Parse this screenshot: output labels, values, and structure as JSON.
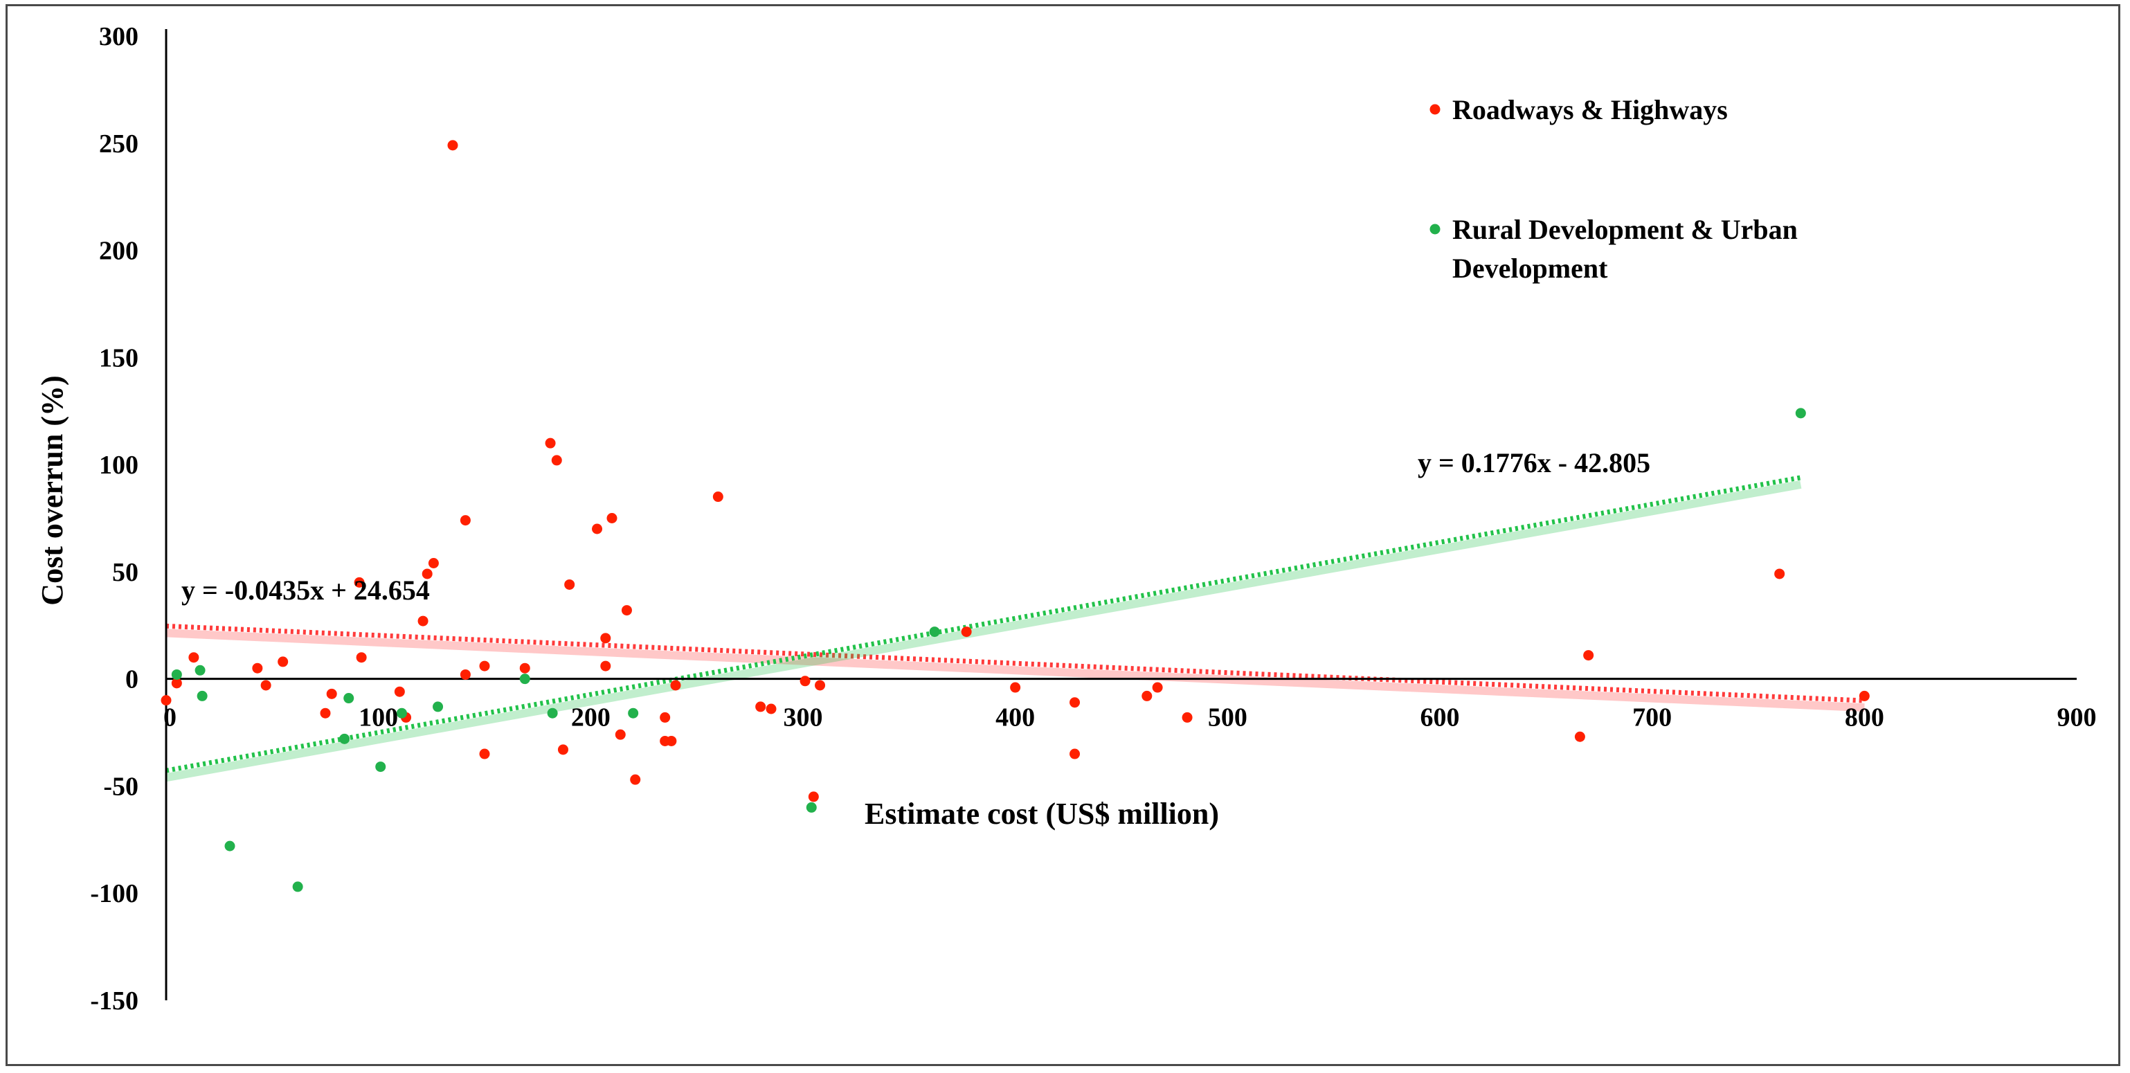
{
  "chart_data": {
    "type": "scatter",
    "title": "",
    "xlabel": "Estimate cost (US$ million)",
    "ylabel": "Cost overrun (%)",
    "xlim": [
      0,
      900
    ],
    "ylim": [
      -150,
      300
    ],
    "x_ticks": [
      "0",
      "100",
      "200",
      "300",
      "400",
      "500",
      "600",
      "700",
      "800",
      "900"
    ],
    "y_ticks": [
      "300",
      "250",
      "200",
      "150",
      "100",
      "50",
      "0",
      "-50",
      "-100",
      "-150"
    ],
    "legend_position": "top-right",
    "series": [
      {
        "name": "Roadways & Highways",
        "color": "#ff2000",
        "trend_color": "#ff3b3b",
        "equation": "y = -0.0435x + 24.654",
        "slope": -0.0435,
        "intercept": 24.654,
        "trend_range": [
          0,
          800
        ],
        "points": [
          [
            0,
            -10
          ],
          [
            5,
            -2
          ],
          [
            13,
            10
          ],
          [
            43,
            5
          ],
          [
            47,
            -3
          ],
          [
            55,
            8
          ],
          [
            75,
            -16
          ],
          [
            78,
            -7
          ],
          [
            91,
            45
          ],
          [
            92,
            10
          ],
          [
            110,
            -6
          ],
          [
            113,
            -18
          ],
          [
            121,
            27
          ],
          [
            123,
            49
          ],
          [
            126,
            54
          ],
          [
            135,
            249
          ],
          [
            141,
            2
          ],
          [
            141,
            74
          ],
          [
            150,
            6
          ],
          [
            150,
            -35
          ],
          [
            169,
            5
          ],
          [
            181,
            110
          ],
          [
            184,
            102
          ],
          [
            187,
            -33
          ],
          [
            190,
            44
          ],
          [
            203,
            70
          ],
          [
            207,
            6
          ],
          [
            207,
            19
          ],
          [
            210,
            75
          ],
          [
            214,
            -26
          ],
          [
            217,
            32
          ],
          [
            221,
            -47
          ],
          [
            235,
            -18
          ],
          [
            235,
            -29
          ],
          [
            238,
            -29
          ],
          [
            240,
            -3
          ],
          [
            260,
            85
          ],
          [
            280,
            -13
          ],
          [
            285,
            -14
          ],
          [
            301,
            -1
          ],
          [
            305,
            -55
          ],
          [
            308,
            -3
          ],
          [
            377,
            22
          ],
          [
            400,
            -4
          ],
          [
            428,
            -11
          ],
          [
            428,
            -35
          ],
          [
            462,
            -8
          ],
          [
            467,
            -4
          ],
          [
            481,
            -18
          ],
          [
            666,
            -27
          ],
          [
            670,
            11
          ],
          [
            760,
            49
          ],
          [
            800,
            -8
          ]
        ]
      },
      {
        "name": "Rural Development & Urban Development",
        "name_lines": [
          "Rural Development & Urban",
          "Development"
        ],
        "color": "#22b14c",
        "trend_color": "#22c24a",
        "equation": "y = 0.1776x - 42.805",
        "slope": 0.1776,
        "intercept": -42.805,
        "trend_range": [
          0,
          770
        ],
        "points": [
          [
            5,
            2
          ],
          [
            16,
            4
          ],
          [
            17,
            -8
          ],
          [
            30,
            -78
          ],
          [
            62,
            -97
          ],
          [
            84,
            -28
          ],
          [
            86,
            -9
          ],
          [
            101,
            -41
          ],
          [
            111,
            -16
          ],
          [
            128,
            -13
          ],
          [
            169,
            0
          ],
          [
            182,
            -16
          ],
          [
            220,
            -16
          ],
          [
            304,
            -60
          ],
          [
            362,
            22
          ],
          [
            770,
            124
          ]
        ]
      }
    ]
  }
}
